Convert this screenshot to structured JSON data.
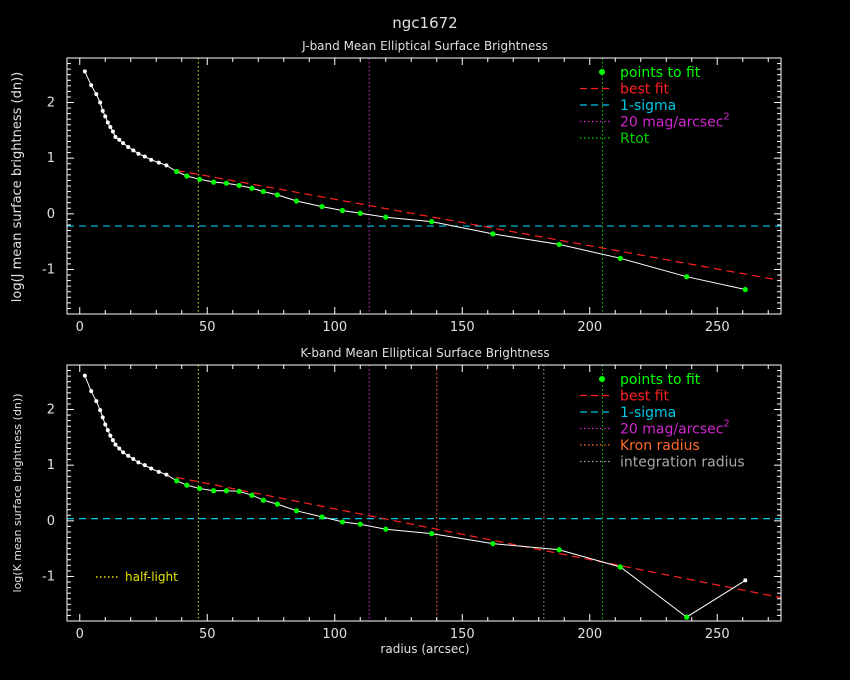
{
  "figure": {
    "title": "ngc1672",
    "xlabel": "radius (arcsec)"
  },
  "colors": {
    "background": "#000000",
    "axes": "#ffffff",
    "data_line": "#ffffff",
    "fit_points": "#00ff00",
    "best_fit": "#ff2020",
    "sigma": "#00c8e6",
    "mag20": "#d026d0",
    "rtot": "#00d000",
    "kron": "#ff6a2a",
    "integration": "#a8a8a8",
    "half_light": "#e6e600"
  },
  "chart_data": [
    {
      "type": "line",
      "title": "J-band Mean Elliptical Surface Brightness",
      "xlabel": "",
      "ylabel": "log(J mean surface brightness (dn))",
      "xlim": [
        -5,
        275
      ],
      "ylim": [
        -1.8,
        2.8
      ],
      "xticks": [
        0,
        50,
        100,
        150,
        200,
        250
      ],
      "yticks": [
        -1,
        0,
        1,
        2
      ],
      "grid": false,
      "legend_position": "top-right",
      "legend": [
        {
          "label": "points to fit",
          "style": "dot",
          "color": "#00ff00"
        },
        {
          "label": "best fit",
          "style": "dashed",
          "color": "#ff2020"
        },
        {
          "label": "1-sigma",
          "style": "dashed",
          "color": "#00c8e6"
        },
        {
          "label": "20 mag/arcsec",
          "sup": "2",
          "style": "dotted",
          "color": "#d026d0"
        },
        {
          "label": "Rtot",
          "style": "dotted",
          "color": "#00d000"
        }
      ],
      "profile": {
        "x": [
          2,
          4.5,
          6.5,
          8,
          9,
          10,
          11,
          12,
          13,
          14,
          15.5,
          17,
          19,
          21,
          23,
          25.5,
          28,
          31,
          34,
          38,
          42,
          47,
          52.5,
          57.5,
          62.5,
          67.5,
          72,
          77.5,
          85,
          95,
          103,
          110,
          120,
          138,
          162,
          188,
          212,
          238,
          261
        ],
        "y": [
          2.56,
          2.31,
          2.15,
          2.0,
          1.85,
          1.75,
          1.64,
          1.56,
          1.48,
          1.38,
          1.33,
          1.27,
          1.2,
          1.14,
          1.08,
          1.03,
          0.97,
          0.92,
          0.87,
          0.76,
          0.68,
          0.62,
          0.57,
          0.55,
          0.51,
          0.46,
          0.4,
          0.34,
          0.23,
          0.13,
          0.06,
          0.01,
          -0.06,
          -0.14,
          -0.36,
          -0.55,
          -0.8,
          -1.13,
          -1.36
        ]
      },
      "fit_points_x": [
        38,
        42,
        47,
        52.5,
        57.5,
        62.5,
        67.5,
        72,
        77.5,
        85,
        95,
        103,
        110,
        120,
        138,
        162,
        188,
        212,
        238,
        261
      ],
      "best_fit": {
        "x": [
          38,
          275
        ],
        "y": [
          0.78,
          -1.2
        ]
      },
      "sigma_level": -0.22,
      "vlines": [
        {
          "x": 46.5,
          "color": "#e6e600"
        },
        {
          "x": 113.5,
          "color": "#d026d0"
        },
        {
          "x": 205,
          "color": "#00d000"
        }
      ]
    },
    {
      "type": "line",
      "title": "K-band Mean Elliptical Surface Brightness",
      "xlabel": "radius (arcsec)",
      "ylabel": "log(K mean surface brightness (dn))",
      "xlim": [
        -5,
        275
      ],
      "ylim": [
        -1.8,
        2.8
      ],
      "xticks": [
        0,
        50,
        100,
        150,
        200,
        250
      ],
      "yticks": [
        -1,
        0,
        1,
        2
      ],
      "grid": false,
      "legend_position": "top-right",
      "legend": [
        {
          "label": "points to fit",
          "style": "dot",
          "color": "#00ff00"
        },
        {
          "label": "best fit",
          "style": "dashed",
          "color": "#ff2020"
        },
        {
          "label": "1-sigma",
          "style": "dashed",
          "color": "#00c8e6"
        },
        {
          "label": "20 mag/arcsec",
          "sup": "2",
          "style": "dotted",
          "color": "#d026d0"
        },
        {
          "label": "Kron radius",
          "style": "dotted",
          "color": "#ff6a2a"
        },
        {
          "label": "integration radius",
          "style": "dotted",
          "color": "#a8a8a8"
        }
      ],
      "annotation": {
        "label": "half-light",
        "color": "#e6e600"
      },
      "profile": {
        "x": [
          2,
          4.5,
          6.5,
          8,
          9,
          10,
          11,
          12,
          13,
          14,
          15.5,
          17,
          19,
          21,
          23,
          25.5,
          28,
          31,
          34,
          38,
          42,
          47,
          52.5,
          57.5,
          62.5,
          67.5,
          72,
          77.5,
          85,
          95,
          103,
          110,
          120,
          138,
          162,
          188,
          212,
          238,
          261
        ],
        "y": [
          2.61,
          2.33,
          2.15,
          1.99,
          1.86,
          1.73,
          1.63,
          1.53,
          1.45,
          1.37,
          1.3,
          1.23,
          1.17,
          1.11,
          1.05,
          1.0,
          0.94,
          0.88,
          0.83,
          0.72,
          0.64,
          0.58,
          0.54,
          0.54,
          0.53,
          0.46,
          0.37,
          0.3,
          0.18,
          0.07,
          -0.02,
          -0.06,
          -0.15,
          -0.23,
          -0.41,
          -0.52,
          -0.83,
          -1.73,
          -1.07
        ]
      },
      "fit_points_x": [
        38,
        42,
        47,
        52.5,
        57.5,
        62.5,
        67.5,
        72,
        77.5,
        85,
        95,
        103,
        110,
        120,
        138,
        162,
        188,
        212,
        238
      ],
      "best_fit": {
        "x": [
          38,
          275
        ],
        "y": [
          0.78,
          -1.38
        ]
      },
      "sigma_level": 0.04,
      "vlines": [
        {
          "x": 46.5,
          "color": "#e6e600"
        },
        {
          "x": 113.5,
          "color": "#d026d0"
        },
        {
          "x": 140,
          "color": "#ff6a2a"
        },
        {
          "x": 182,
          "color": "#a8a8a8"
        },
        {
          "x": 205,
          "color": "#00d000"
        }
      ]
    }
  ]
}
